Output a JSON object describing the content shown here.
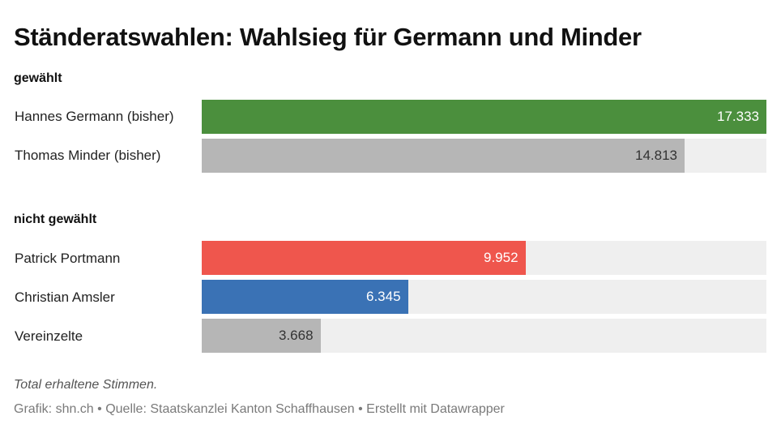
{
  "title": "Ständeratswahlen: Wahlsieg für Germann und Minder",
  "note": "Total erhaltene Stimmen.",
  "footer": "Grafik: shn.ch • Quelle: Staatskanzlei Kanton Schaffhausen • Erstellt mit Datawrapper",
  "chart_data": {
    "type": "bar",
    "orientation": "horizontal",
    "xlim": [
      0,
      17333
    ],
    "groups": [
      {
        "title": "gewählt",
        "rows": [
          {
            "label": "Hannes Germann (bisher)",
            "value": 17333,
            "display": "17.333",
            "color": "#4b8f3d",
            "text_color": "#ffffff"
          },
          {
            "label": "Thomas Minder (bisher)",
            "value": 14813,
            "display": "14.813",
            "color": "#b6b6b6",
            "text_color": "#333333"
          }
        ]
      },
      {
        "title": "nicht gewählt",
        "rows": [
          {
            "label": "Patrick Portmann",
            "value": 9952,
            "display": "9.952",
            "color": "#ef564d",
            "text_color": "#ffffff"
          },
          {
            "label": "Christian Amsler",
            "value": 6345,
            "display": "6.345",
            "color": "#3a72b5",
            "text_color": "#ffffff"
          },
          {
            "label": "Vereinzelte",
            "value": 3668,
            "display": "3.668",
            "color": "#b6b6b6",
            "text_color": "#333333"
          }
        ]
      }
    ]
  }
}
